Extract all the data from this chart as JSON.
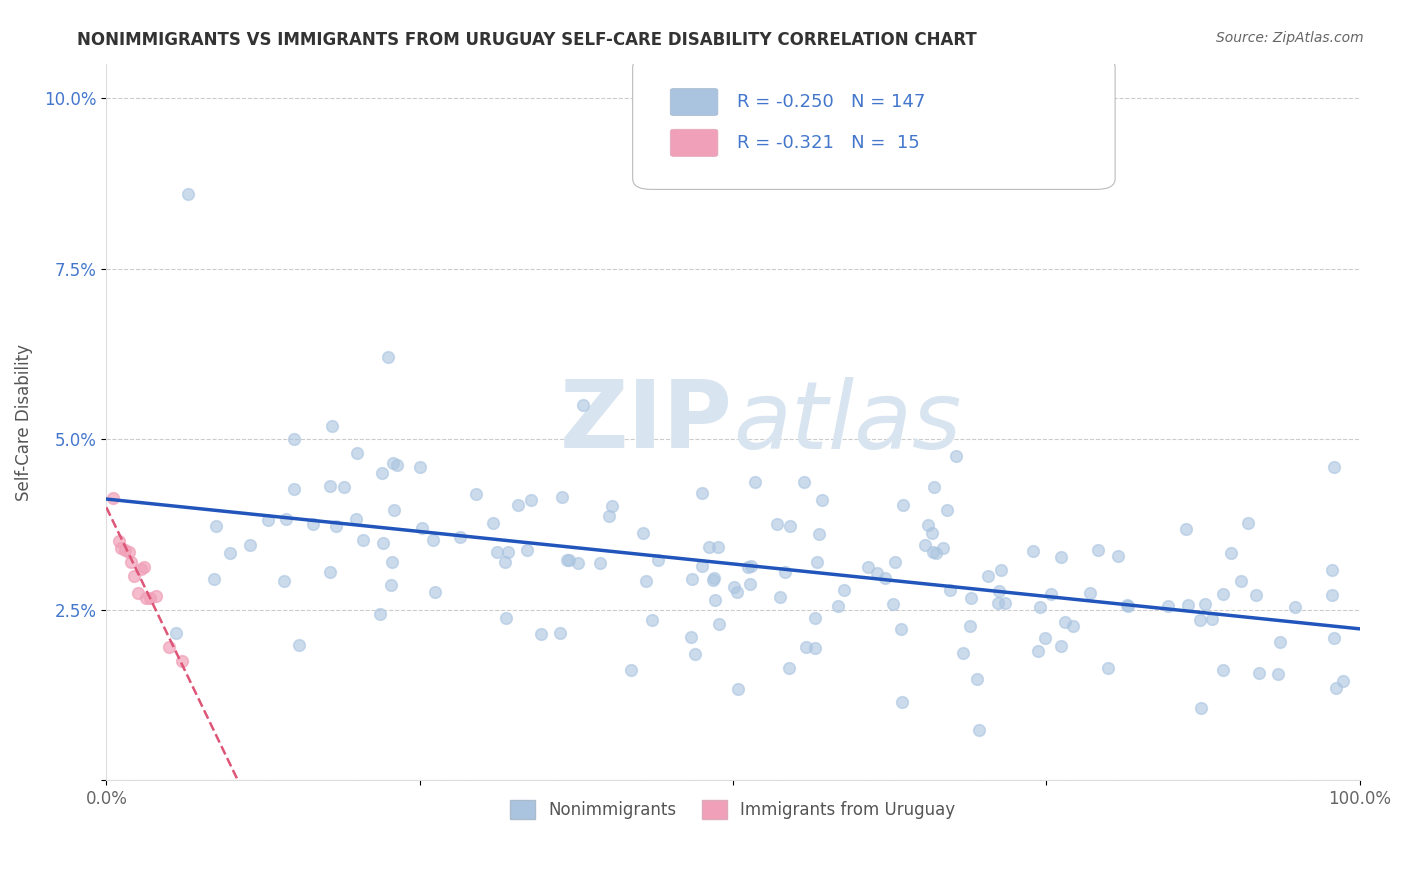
{
  "title": "NONIMMIGRANTS VS IMMIGRANTS FROM URUGUAY SELF-CARE DISABILITY CORRELATION CHART",
  "source": "Source: ZipAtlas.com",
  "ylabel": "Self-Care Disability",
  "xlim": [
    0.0,
    1.0
  ],
  "ylim": [
    0.0,
    0.105
  ],
  "yticks": [
    0.0,
    0.025,
    0.05,
    0.075,
    0.1
  ],
  "ytick_labels": [
    "",
    "2.5%",
    "5.0%",
    "7.5%",
    "10.0%"
  ],
  "xtick_labels": [
    "0.0%",
    "",
    "",
    "",
    "100.0%"
  ],
  "nonimmigrant_color": "#aac4e0",
  "immigrant_color": "#f0a0b8",
  "trend_nonimmigrant_color": "#2255bb",
  "trend_immigrant_color": "#dd5577",
  "background_color": "#ffffff",
  "grid_color": "#cccccc",
  "watermark_color": "#d8e4f0",
  "legend_R_nonimmigrant": "-0.250",
  "legend_N_nonimmigrant": "147",
  "legend_R_immigrant": "-0.321",
  "legend_N_immigrant": "15",
  "tick_color": "#4477cc",
  "title_color": "#333333",
  "source_color": "#666666",
  "ylabel_color": "#555555"
}
